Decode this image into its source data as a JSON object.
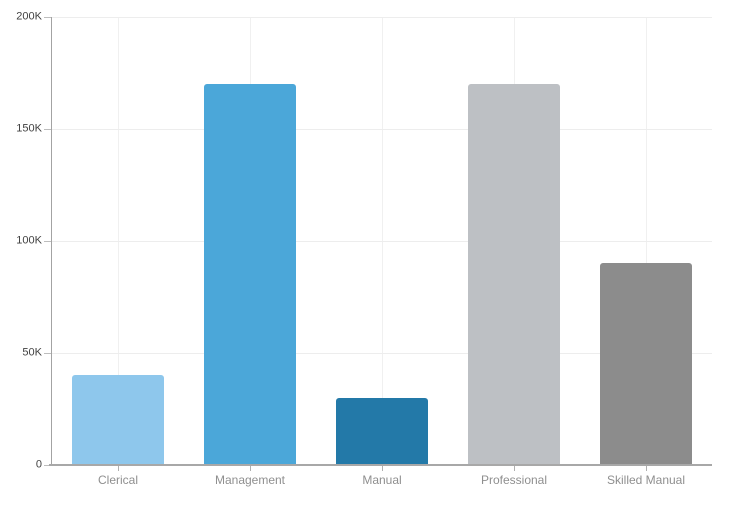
{
  "chart_data": {
    "type": "bar",
    "title": "",
    "xlabel": "",
    "ylabel": "",
    "categories": [
      "Clerical",
      "Management",
      "Manual",
      "Professional",
      "Skilled Manual"
    ],
    "values": [
      40000,
      170000,
      30000,
      170000,
      90000
    ],
    "bar_colors": [
      "#8EC7EC",
      "#4BA7D9",
      "#2379A8",
      "#BDC0C4",
      "#8C8C8C"
    ],
    "ylim": [
      0,
      200000
    ],
    "y_ticks": [
      0,
      50000,
      100000,
      150000,
      200000
    ],
    "y_tick_labels": [
      "0",
      "50K",
      "100K",
      "150K",
      "200K"
    ],
    "grid": true,
    "legend": "none",
    "background_color": "#FFFFFF",
    "axis_label_color": "#424242",
    "category_label_color": "#8F8F8F"
  }
}
